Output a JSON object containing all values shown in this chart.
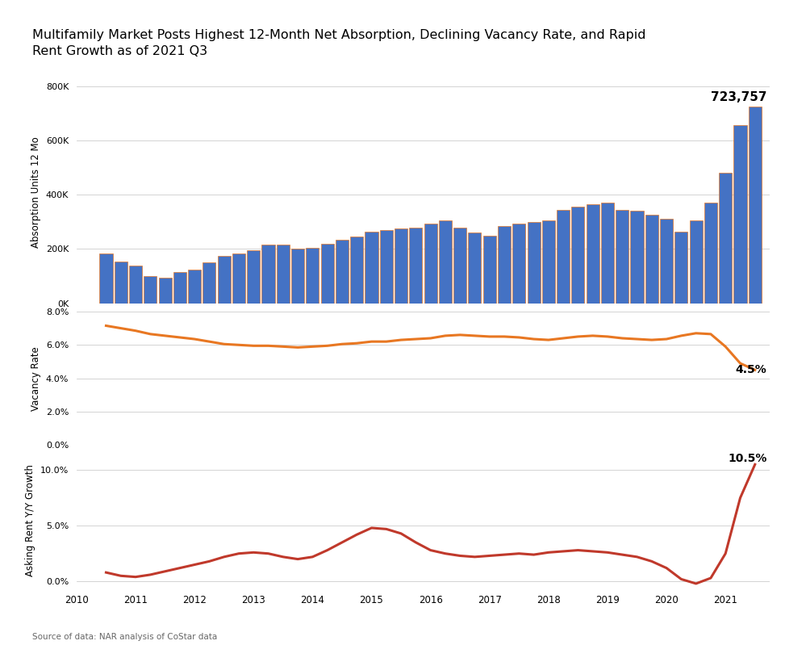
{
  "title": "Multifamily Market Posts Highest 12-Month Net Absorption, Declining Vacancy Rate, and Rapid\nRent Growth as of 2021 Q3",
  "source": "Source of data: NAR analysis of CoStar data",
  "bar_color": "#4472C4",
  "bar_edge_color": "#E87722",
  "vacancy_color": "#E87722",
  "rent_color": "#C0392B",
  "background_color": "#FFFFFF",
  "grid_color": "#CCCCCC",
  "absorption_label": "Absorption Units 12 Mo",
  "vacancy_label": "Vacancy Rate",
  "rent_label": "Asking Rent Y/Y Growth",
  "annotation_absorption": "723,757",
  "annotation_vacancy": "4.5%",
  "annotation_rent": "10.5%",
  "absorption": [
    185000,
    155000,
    140000,
    100000,
    95000,
    115000,
    125000,
    150000,
    175000,
    185000,
    195000,
    215000,
    215000,
    200000,
    205000,
    220000,
    235000,
    245000,
    265000,
    270000,
    275000,
    280000,
    295000,
    305000,
    280000,
    260000,
    250000,
    285000,
    295000,
    300000,
    305000,
    345000,
    355000,
    365000,
    370000,
    345000,
    340000,
    325000,
    310000,
    265000,
    305000,
    370000,
    480000,
    655000,
    723757
  ],
  "vacancy": [
    7.15,
    7.0,
    6.85,
    6.65,
    6.55,
    6.45,
    6.35,
    6.2,
    6.05,
    6.0,
    5.95,
    5.95,
    5.9,
    5.85,
    5.9,
    5.95,
    6.05,
    6.1,
    6.2,
    6.2,
    6.3,
    6.35,
    6.4,
    6.55,
    6.6,
    6.55,
    6.5,
    6.5,
    6.45,
    6.35,
    6.3,
    6.4,
    6.5,
    6.55,
    6.5,
    6.4,
    6.35,
    6.3,
    6.35,
    6.55,
    6.7,
    6.65,
    5.9,
    4.9,
    4.5
  ],
  "rent_growth": [
    0.8,
    0.5,
    0.4,
    0.6,
    0.9,
    1.2,
    1.5,
    1.8,
    2.2,
    2.5,
    2.6,
    2.5,
    2.2,
    2.0,
    2.2,
    2.8,
    3.5,
    4.2,
    4.8,
    4.7,
    4.3,
    3.5,
    2.8,
    2.5,
    2.3,
    2.2,
    2.3,
    2.4,
    2.5,
    2.4,
    2.6,
    2.7,
    2.8,
    2.7,
    2.6,
    2.4,
    2.2,
    1.8,
    1.2,
    0.2,
    -0.2,
    0.3,
    2.5,
    7.5,
    10.5
  ],
  "quarter_times": [
    2010.5,
    2010.75,
    2011.0,
    2011.25,
    2011.5,
    2011.75,
    2012.0,
    2012.25,
    2012.5,
    2012.75,
    2013.0,
    2013.25,
    2013.5,
    2013.75,
    2014.0,
    2014.25,
    2014.5,
    2014.75,
    2015.0,
    2015.25,
    2015.5,
    2015.75,
    2016.0,
    2016.25,
    2016.5,
    2016.75,
    2017.0,
    2017.25,
    2017.5,
    2017.75,
    2018.0,
    2018.25,
    2018.5,
    2018.75,
    2019.0,
    2019.25,
    2019.5,
    2019.75,
    2020.0,
    2020.25,
    2020.5,
    2020.75,
    2021.0,
    2021.25,
    2021.5
  ],
  "xtick_positions": [
    2010.0,
    2011.0,
    2012.0,
    2013.0,
    2014.0,
    2015.0,
    2016.0,
    2017.0,
    2018.0,
    2019.0,
    2020.0,
    2021.0
  ],
  "xtick_labels": [
    "2010",
    "2011",
    "2012",
    "2013",
    "2014",
    "2015",
    "2016",
    "2017",
    "2018",
    "2019",
    "2020",
    "2021"
  ],
  "xlim_left": 2010.25,
  "xlim_right": 2021.75
}
